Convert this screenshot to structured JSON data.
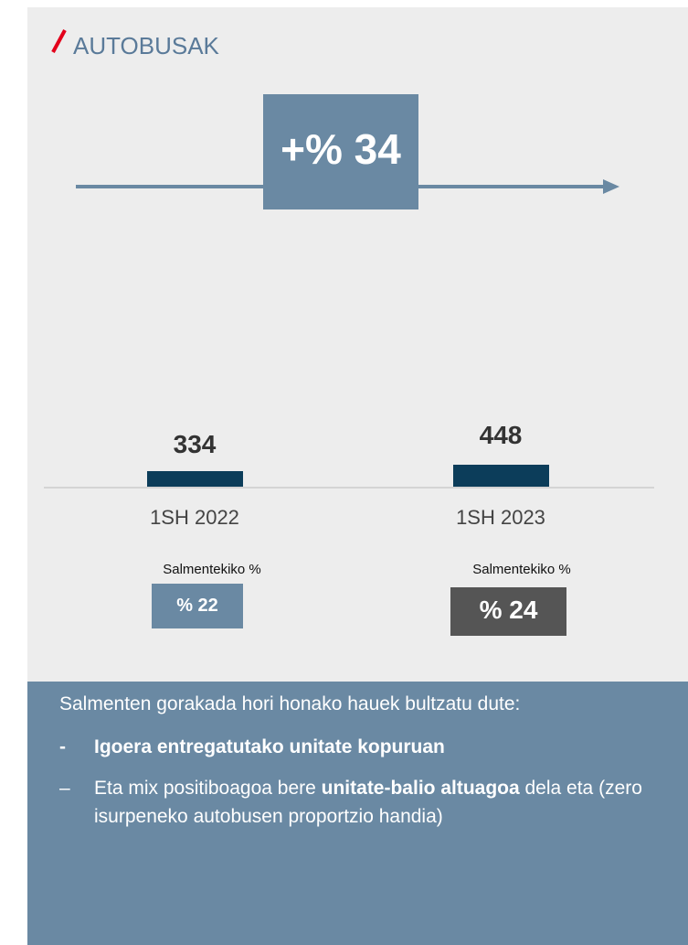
{
  "title": "AUTOBUSAK",
  "growth": "+% 34",
  "columns": [
    {
      "value": "334",
      "label": "1SH 2022",
      "share_caption": "Salmentekiko %",
      "share": "% 22"
    },
    {
      "value": "448",
      "label": "1SH 2023",
      "share_caption": "Salmentekiko %",
      "share": "% 24"
    }
  ],
  "summary": {
    "intro": "Salmenten gorakada hori honako hauek bultzatu dute:",
    "bullets": [
      {
        "marker": "-",
        "segments": [
          {
            "text": "Igoera entregatutako unitate kopuruan",
            "bold": true
          }
        ]
      },
      {
        "marker": "–",
        "segments": [
          {
            "text": "Eta mix positiboagoa bere ",
            "bold": false
          },
          {
            "text": "unitate-balio altuagoa",
            "bold": true
          },
          {
            "text": " dela eta (zero isurpeneko autobusen proportzio handia)",
            "bold": false
          }
        ]
      }
    ]
  }
}
